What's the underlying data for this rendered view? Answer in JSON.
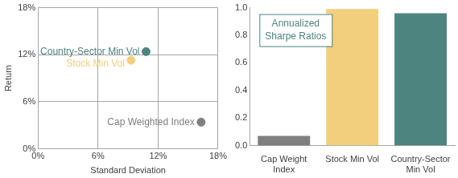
{
  "chart_data": [
    {
      "type": "scatter",
      "xlabel": "Standard Deviation",
      "ylabel": "Return",
      "series": [
        {
          "name": "Country-Sector Min Vol",
          "color": "#4e8480",
          "x": [
            10.8
          ],
          "values": [
            12.4
          ]
        },
        {
          "name": "Stock Min Vol",
          "color": "#f2cf7c",
          "x": [
            9.3
          ],
          "values": [
            11.3
          ]
        },
        {
          "name": "Cap Weighted Index",
          "color": "#7f7f7f",
          "x": [
            16.3
          ],
          "values": [
            3.4
          ]
        }
      ],
      "xlim": [
        0,
        18
      ],
      "xticks": [
        {
          "value": 0,
          "label": "0%"
        },
        {
          "value": 6,
          "label": "6%"
        },
        {
          "value": 12,
          "label": "12%"
        },
        {
          "value": 18,
          "label": "18%"
        }
      ],
      "ylim": [
        0,
        18
      ],
      "yticks": [
        {
          "value": 0,
          "label": "0%"
        },
        {
          "value": 6,
          "label": "6%"
        },
        {
          "value": 12,
          "label": "12%"
        },
        {
          "value": 18,
          "label": "18%"
        }
      ],
      "grid": true
    },
    {
      "type": "bar",
      "annotation": "Annualized Sharpe Ratios",
      "categories": [
        "Cap Weight Index",
        "Stock Min Vol",
        "Country-Sector Min Vol"
      ],
      "values": [
        0.07,
        0.99,
        0.96
      ],
      "colors": [
        "#7f7f7f",
        "#f2cf7c",
        "#4e8480"
      ],
      "ylim": [
        0,
        1
      ],
      "yticks": [
        {
          "value": 0,
          "label": "0.0"
        },
        {
          "value": 0.2,
          "label": "0.2"
        },
        {
          "value": 0.4,
          "label": "0.4"
        },
        {
          "value": 0.6,
          "label": "0.6"
        },
        {
          "value": 0.8,
          "label": "0.8"
        },
        {
          "value": 1,
          "label": "1.0"
        }
      ],
      "grid": false
    }
  ]
}
